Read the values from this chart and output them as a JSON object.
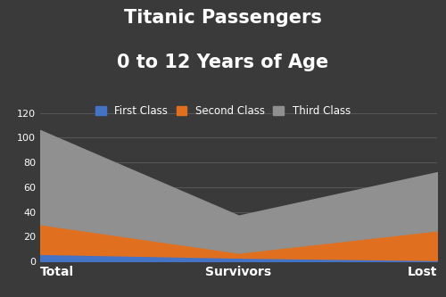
{
  "categories": [
    "Total",
    "Survivors",
    "Lost"
  ],
  "first_class": [
    6,
    3,
    1
  ],
  "second_class": [
    24,
    4,
    24
  ],
  "third_class": [
    76,
    30,
    47
  ],
  "colors": {
    "first_class": "#4472c4",
    "second_class": "#e07020",
    "third_class": "#909090"
  },
  "title_line1": "Titanic Passengers",
  "title_line2": "0 to 12 Years of Age",
  "legend_labels": [
    "First Class",
    "Second Class",
    "Third Class"
  ],
  "ylim": [
    0,
    120
  ],
  "yticks": [
    0,
    20,
    40,
    60,
    80,
    100,
    120
  ],
  "background_color": "#3a3a3a",
  "plot_bg_color": "#3a3a3a",
  "grid_color": "#606060",
  "text_color": "#ffffff",
  "title_fontsize": 15,
  "legend_fontsize": 8.5,
  "tick_fontsize": 8,
  "xlabel_fontsize": 10
}
